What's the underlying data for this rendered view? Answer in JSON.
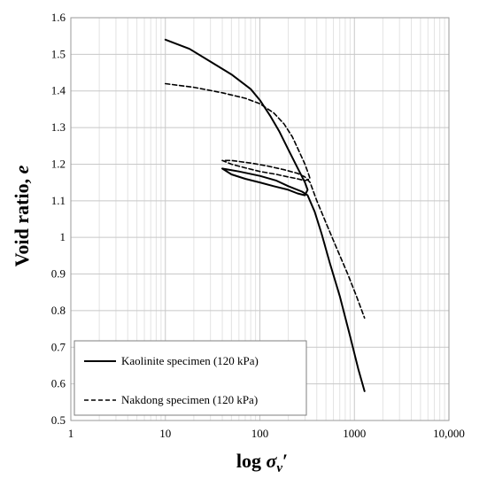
{
  "chart_data": {
    "type": "line",
    "xscale": "log",
    "xlim": [
      1,
      10000
    ],
    "ylim": [
      0.5,
      1.6
    ],
    "x_ticks": [
      "1",
      "10",
      "100",
      "1000",
      "10,000"
    ],
    "y_ticks": [
      "0.5",
      "0.6",
      "0.7",
      "0.8",
      "0.9",
      "1",
      "1.1",
      "1.2",
      "1.3",
      "1.4",
      "1.5",
      "1.6"
    ],
    "xlabel": "log σv′",
    "ylabel": "Void ratio, e",
    "grid": true,
    "legend_position": "bottom-left",
    "series": [
      {
        "name": "Kaolinite specimen (120 kPa)",
        "style": "solid",
        "color": "#000000",
        "points": [
          [
            10,
            1.54
          ],
          [
            18,
            1.515
          ],
          [
            30,
            1.48
          ],
          [
            50,
            1.445
          ],
          [
            80,
            1.405
          ],
          [
            100,
            1.375
          ],
          [
            130,
            1.33
          ],
          [
            160,
            1.29
          ],
          [
            200,
            1.24
          ],
          [
            250,
            1.19
          ],
          [
            300,
            1.15
          ],
          [
            320,
            1.13
          ],
          [
            300,
            1.115
          ],
          [
            250,
            1.12
          ],
          [
            200,
            1.13
          ],
          [
            140,
            1.14
          ],
          [
            100,
            1.15
          ],
          [
            70,
            1.16
          ],
          [
            50,
            1.172
          ],
          [
            40,
            1.188
          ],
          [
            60,
            1.18
          ],
          [
            100,
            1.168
          ],
          [
            150,
            1.155
          ],
          [
            200,
            1.14
          ],
          [
            280,
            1.125
          ],
          [
            320,
            1.115
          ],
          [
            380,
            1.07
          ],
          [
            450,
            1.01
          ],
          [
            550,
            0.93
          ],
          [
            700,
            0.84
          ],
          [
            900,
            0.73
          ],
          [
            1100,
            0.64
          ],
          [
            1280,
            0.58
          ]
        ]
      },
      {
        "name": "Nakdong specimen (120 kPa)",
        "style": "dashed",
        "color": "#000000",
        "points": [
          [
            10,
            1.42
          ],
          [
            20,
            1.41
          ],
          [
            40,
            1.395
          ],
          [
            70,
            1.38
          ],
          [
            100,
            1.365
          ],
          [
            140,
            1.34
          ],
          [
            180,
            1.31
          ],
          [
            220,
            1.275
          ],
          [
            260,
            1.235
          ],
          [
            300,
            1.2
          ],
          [
            330,
            1.17
          ],
          [
            340,
            1.16
          ],
          [
            300,
            1.155
          ],
          [
            250,
            1.16
          ],
          [
            200,
            1.165
          ],
          [
            150,
            1.172
          ],
          [
            100,
            1.18
          ],
          [
            70,
            1.19
          ],
          [
            50,
            1.2
          ],
          [
            40,
            1.21
          ],
          [
            50,
            1.21
          ],
          [
            80,
            1.203
          ],
          [
            120,
            1.195
          ],
          [
            180,
            1.185
          ],
          [
            250,
            1.175
          ],
          [
            300,
            1.165
          ],
          [
            340,
            1.15
          ],
          [
            400,
            1.1
          ],
          [
            500,
            1.04
          ],
          [
            650,
            0.97
          ],
          [
            850,
            0.9
          ],
          [
            1050,
            0.84
          ],
          [
            1280,
            0.78
          ]
        ]
      }
    ]
  }
}
